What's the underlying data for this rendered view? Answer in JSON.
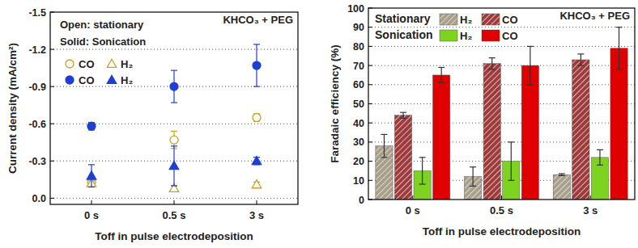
{
  "chart_data": [
    {
      "type": "scatter",
      "y_label": "Current density (mA/cm²)",
      "x_label": "Toff in pulse electrodeposition",
      "categories": [
        "0 s",
        "0.5 s",
        "3 s"
      ],
      "ylim": [
        0.05,
        -1.5
      ],
      "yticks": [
        {
          "value": 0,
          "label": "0.0"
        },
        -0.3,
        -0.6,
        -0.9,
        -1.2,
        -1.5
      ],
      "grid": true,
      "legend": "top-left",
      "annotations": [
        "Open: stationary",
        "Solid: Sonication",
        "KHCO₃ + PEG"
      ],
      "series": [
        {
          "name": "CO",
          "color": "#c9a227",
          "marker": "circle-open",
          "values": [
            -0.13,
            -0.47,
            -0.65
          ],
          "errors": [
            0.02,
            0.07,
            0.03
          ]
        },
        {
          "name": "H₂",
          "color": "#c9a227",
          "marker": "triangle-open",
          "values": [
            -0.12,
            -0.08,
            -0.11
          ],
          "errors": [
            0.02,
            0.02,
            0.02
          ]
        },
        {
          "name": "CO",
          "color": "#1f3fd0",
          "marker": "circle",
          "values": [
            -0.58,
            -0.9,
            -1.07
          ],
          "errors": [
            0.03,
            0.13,
            0.17
          ]
        },
        {
          "name": "H₂",
          "color": "#1f3fd0",
          "marker": "triangle",
          "values": [
            -0.18,
            -0.26,
            -0.3
          ],
          "errors": [
            0.09,
            0.16,
            0.03
          ]
        }
      ]
    },
    {
      "type": "bar",
      "y_label": "Faradaic efficiency (%)",
      "x_label": "Toff in pulse electrodeposition",
      "categories": [
        "0 s",
        "0.5 s",
        "3 s"
      ],
      "ylim": [
        0,
        100
      ],
      "yticks": [
        0,
        10,
        20,
        30,
        40,
        50,
        60,
        70,
        80,
        90,
        100
      ],
      "grid": true,
      "legend": "top-left",
      "annotations": [
        "Stationary",
        "Sonication",
        "KHCO₃ + PEG"
      ],
      "series": [
        {
          "name": "H₂",
          "color": "#a8a08a",
          "line_style": "hatched",
          "values": [
            28,
            12,
            13
          ],
          "errors": [
            6,
            5,
            0.5
          ]
        },
        {
          "name": "CO",
          "color": "#9e3a3a",
          "line_style": "hatched",
          "values": [
            44,
            71,
            73
          ],
          "errors": [
            1.5,
            3,
            3
          ]
        },
        {
          "name": "H₂",
          "color": "#7ed321",
          "line_style": "solid",
          "values": [
            15,
            20,
            22
          ],
          "errors": [
            7,
            10,
            4
          ]
        },
        {
          "name": "CO",
          "color": "#e00000",
          "line_style": "solid",
          "values": [
            65,
            70,
            79
          ],
          "errors": [
            4,
            10,
            11
          ]
        }
      ]
    }
  ]
}
